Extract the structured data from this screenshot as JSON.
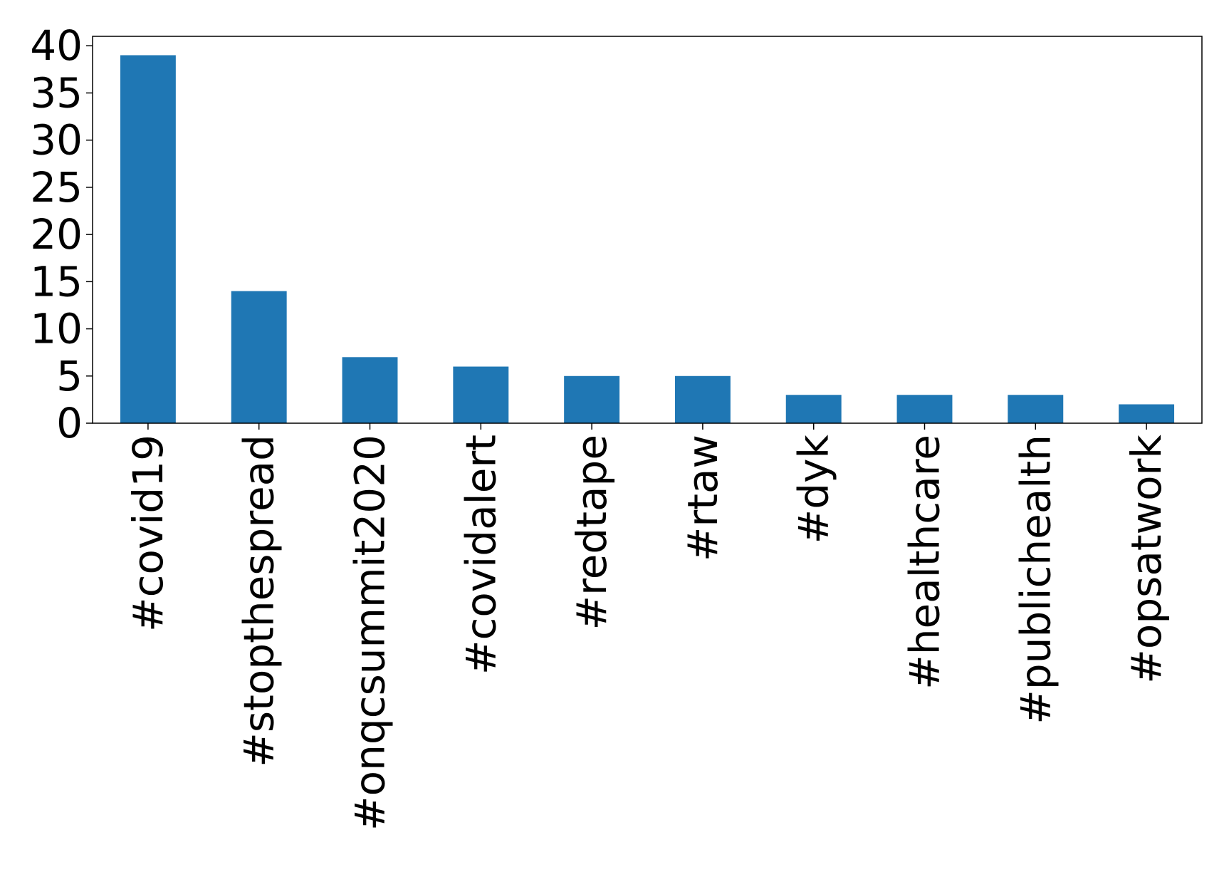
{
  "chart_data": {
    "type": "bar",
    "title": "",
    "xlabel": "",
    "ylabel": "",
    "categories": [
      "#covid19",
      "#stopthespread",
      "#onqcsummit2020",
      "#covidalert",
      "#redtape",
      "#rtaw",
      "#dyk",
      "#healthcare",
      "#publichealth",
      "#opsatwork"
    ],
    "values": [
      39,
      14,
      7,
      6,
      5,
      5,
      3,
      3,
      3,
      2
    ],
    "ylim": [
      0,
      41
    ],
    "yticks": [
      0,
      5,
      10,
      15,
      20,
      25,
      30,
      35,
      40
    ],
    "ytick_labels": [
      "0",
      "5",
      "10",
      "15",
      "20",
      "25",
      "30",
      "35",
      "40"
    ],
    "grid": false,
    "legend": "none",
    "bar_color": "#1f77b4"
  }
}
